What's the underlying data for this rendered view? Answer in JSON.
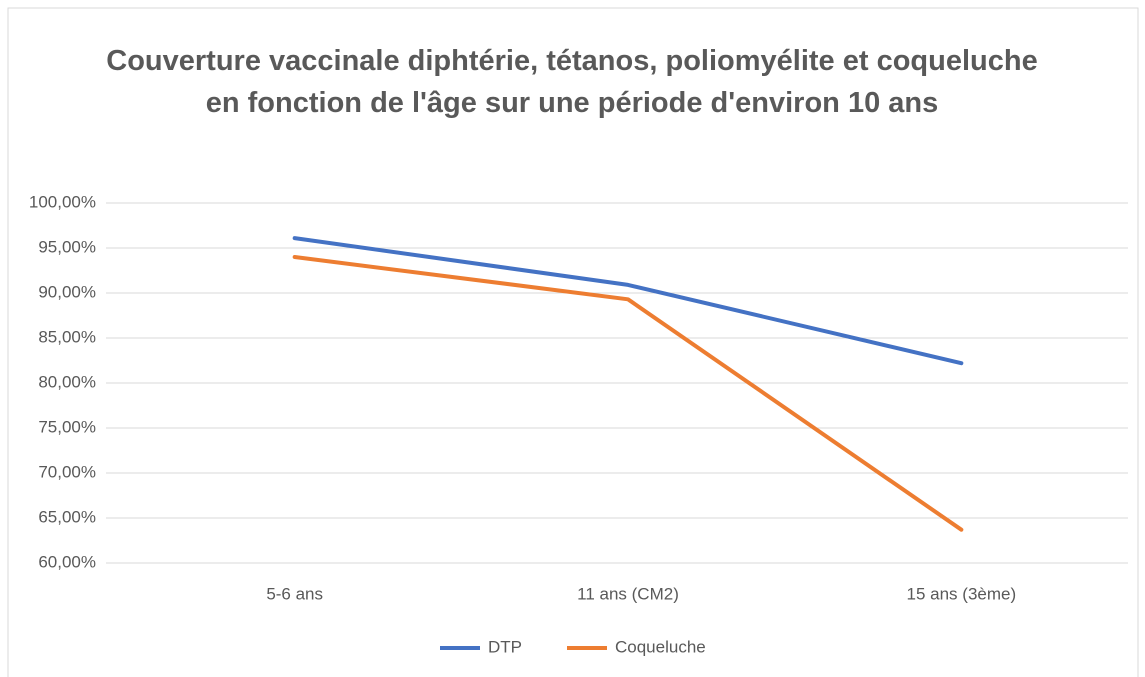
{
  "chart_data": {
    "type": "line",
    "title": "Couverture vaccinale diphtérie, tétanos, poliomyélite et coqueluche en fonction de l'âge sur une période d'environ 10 ans",
    "categories": [
      "5-6 ans",
      "11 ans (CM2)",
      "15 ans (3ème)"
    ],
    "series": [
      {
        "name": "DTP",
        "color": "#4472c4",
        "values": [
          96.1,
          90.9,
          82.2
        ]
      },
      {
        "name": "Coqueluche",
        "color": "#ed7d31",
        "values": [
          94.0,
          89.3,
          63.7
        ]
      }
    ],
    "ylim": [
      60,
      100
    ],
    "yticks": [
      {
        "value": 60,
        "label": "60,00%"
      },
      {
        "value": 65,
        "label": "65,00%"
      },
      {
        "value": 70,
        "label": "70,00%"
      },
      {
        "value": 75,
        "label": "75,00%"
      },
      {
        "value": 80,
        "label": "80,00%"
      },
      {
        "value": 85,
        "label": "85,00%"
      },
      {
        "value": 90,
        "label": "90,00%"
      },
      {
        "value": 95,
        "label": "95,00%"
      },
      {
        "value": 100,
        "label": "100,00%"
      }
    ],
    "grid": true,
    "legend": "bottom"
  }
}
